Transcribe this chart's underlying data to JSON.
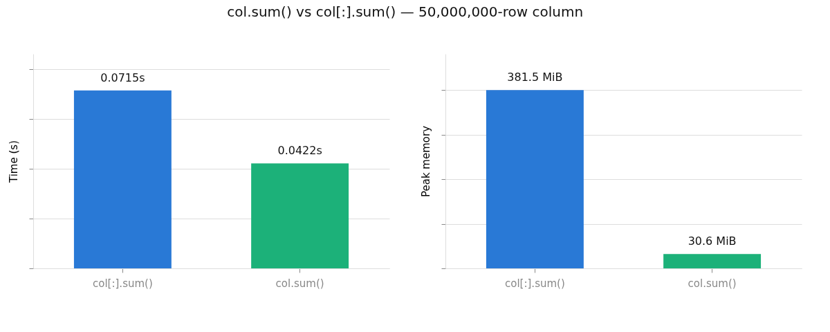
{
  "chart_data": [
    {
      "type": "bar",
      "title": "col.sum() vs col[:].sum() — 50,000,000-row column",
      "ylabel": "Time (s)",
      "categories": [
        "col[:].sum()",
        "col.sum()"
      ],
      "values": [
        0.0715,
        0.0422
      ],
      "colors": [
        "#2979d6",
        "#1cb179"
      ],
      "value_labels": [
        "0.0715s",
        "0.0422s"
      ],
      "ylim": [
        0,
        0.0862
      ],
      "yticks": [
        {
          "value": 0,
          "label": null
        },
        {
          "value": 0.02,
          "label": null
        },
        {
          "value": 0.04,
          "label": null
        },
        {
          "value": 0.06,
          "label": null
        },
        {
          "value": 0.08,
          "label": null
        }
      ],
      "tick_labels": "x",
      "grid": "y",
      "legend": false
    },
    {
      "type": "bar",
      "ylabel": "Peak memory",
      "categories": [
        "col[:].sum()",
        "col.sum()"
      ],
      "values": [
        381.5,
        30.6
      ],
      "colors": [
        "#2979d6",
        "#1cb179"
      ],
      "value_labels": [
        "381.5 MiB",
        "30.6 MiB"
      ],
      "ylim": [
        0,
        459
      ],
      "yticks": [
        {
          "value": 0,
          "label": null
        },
        {
          "value": 95.4,
          "label": null
        },
        {
          "value": 190.8,
          "label": null
        },
        {
          "value": 286.1,
          "label": null
        },
        {
          "value": 381.5,
          "label": null
        }
      ],
      "tick_labels": "x",
      "grid": "y",
      "legend": false
    }
  ]
}
